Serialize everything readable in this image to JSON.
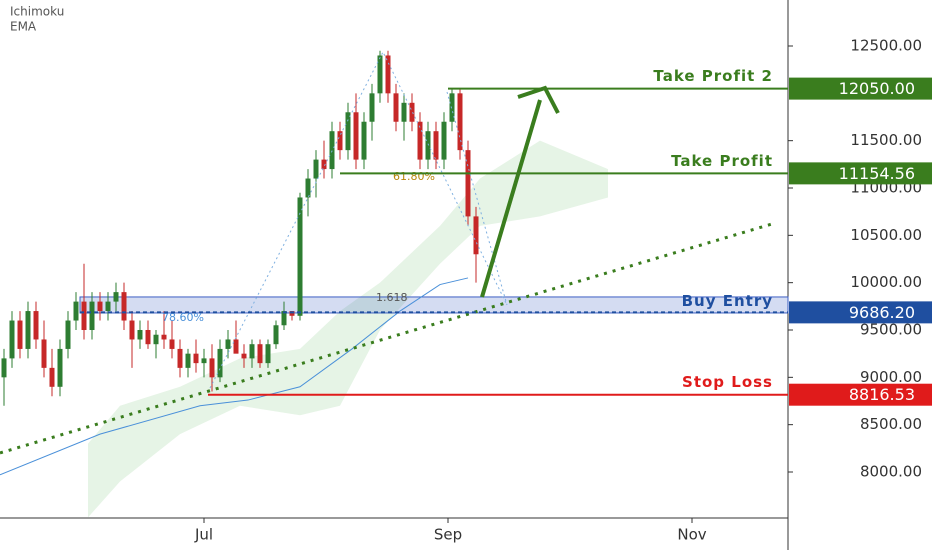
{
  "chart_data": {
    "type": "candlestick",
    "indicators": [
      "Ichimoku",
      "EMA"
    ],
    "xlim": [
      0,
      197
    ],
    "xticks": [
      {
        "value": 51,
        "label": "Jul"
      },
      {
        "value": 112,
        "label": "Sep"
      },
      {
        "value": 173,
        "label": "Nov"
      }
    ],
    "ylim": [
      7514,
      12986
    ],
    "yticks": [
      {
        "value": 8000,
        "label": "8000.00"
      },
      {
        "value": 8500,
        "label": "8500.00"
      },
      {
        "value": 9000,
        "label": "9000.00"
      },
      {
        "value": 9500,
        "label": "9500.00"
      },
      {
        "value": 10000,
        "label": "10000.00"
      },
      {
        "value": 10500,
        "label": "10500.00"
      },
      {
        "value": 11000,
        "label": "11000.00"
      },
      {
        "value": 11500,
        "label": "11500.00"
      },
      {
        "value": 12500,
        "label": "12500.00"
      }
    ],
    "up_color": "#2e7d32",
    "down_color": "#c62828",
    "candles": {
      "x": [
        1,
        3,
        5,
        7,
        9,
        11,
        13,
        15,
        17,
        19,
        21,
        23,
        25,
        27,
        29,
        31,
        33,
        35,
        37,
        39,
        41,
        43,
        45,
        47,
        49,
        51,
        53,
        55,
        57,
        59,
        61,
        63,
        65,
        67,
        69,
        71,
        73,
        75,
        77,
        79,
        81,
        83,
        85,
        87,
        89,
        91,
        93,
        95,
        97,
        99,
        101,
        103,
        105,
        107,
        109,
        111,
        113,
        115,
        117,
        119
      ],
      "open": [
        9000,
        9200,
        9600,
        9300,
        9700,
        9400,
        9100,
        8900,
        9300,
        9600,
        9800,
        9500,
        9800,
        9700,
        9800,
        9900,
        9600,
        9400,
        9500,
        9350,
        9450,
        9400,
        9300,
        9100,
        9250,
        9150,
        9200,
        9000,
        9300,
        9400,
        9250,
        9200,
        9350,
        9150,
        9350,
        9550,
        9700,
        9650,
        10900,
        11100,
        11300,
        11200,
        11600,
        11400,
        11800,
        11300,
        11700,
        12000,
        12400,
        12000,
        11700,
        11900,
        11700,
        11300,
        11600,
        11300,
        11700,
        12000,
        11400,
        10700
      ],
      "high": [
        9300,
        9700,
        9700,
        9800,
        9800,
        9600,
        9300,
        9400,
        9700,
        9900,
        10200,
        9900,
        9900,
        9900,
        10000,
        10000,
        9700,
        9600,
        9600,
        9500,
        9700,
        9600,
        9400,
        9300,
        9400,
        9300,
        9350,
        9400,
        9500,
        9600,
        9350,
        9400,
        9400,
        9400,
        9600,
        9800,
        9700,
        10950,
        11200,
        11400,
        11500,
        11700,
        11700,
        11900,
        12000,
        11800,
        12100,
        12450,
        12450,
        12100,
        12000,
        12000,
        11800,
        11700,
        11700,
        11800,
        12050,
        12050,
        11500,
        10800
      ],
      "low": [
        8700,
        9100,
        9200,
        9200,
        9300,
        9000,
        8800,
        8800,
        9200,
        9500,
        9400,
        9400,
        9600,
        9600,
        9700,
        9500,
        9100,
        9300,
        9300,
        9200,
        9300,
        9200,
        9000,
        9000,
        9050,
        9000,
        8850,
        8950,
        9200,
        9300,
        9100,
        9100,
        9100,
        9100,
        9300,
        9500,
        9600,
        9600,
        10700,
        10900,
        11100,
        11100,
        11300,
        11300,
        11200,
        11200,
        11500,
        11900,
        11900,
        11600,
        11500,
        11600,
        11200,
        11200,
        11200,
        11200,
        11600,
        11300,
        10600,
        10000
      ],
      "close": [
        9200,
        9600,
        9300,
        9700,
        9400,
        9100,
        8900,
        9300,
        9600,
        9800,
        9500,
        9800,
        9700,
        9800,
        9900,
        9600,
        9400,
        9500,
        9350,
        9450,
        9400,
        9300,
        9100,
        9250,
        9150,
        9200,
        9000,
        9300,
        9400,
        9250,
        9200,
        9350,
        9150,
        9350,
        9550,
        9700,
        9650,
        10900,
        11100,
        11300,
        11200,
        11600,
        11400,
        11800,
        11300,
        11700,
        12000,
        12400,
        12000,
        11700,
        11900,
        11700,
        11300,
        11600,
        11300,
        11700,
        12000,
        11400,
        10700,
        10300
      ]
    },
    "ema": {
      "color": "#4a90d9",
      "x": [
        0,
        25,
        50,
        62,
        75,
        88,
        100,
        110,
        117
      ],
      "values": [
        7970,
        8400,
        8700,
        8760,
        8900,
        9300,
        9700,
        9980,
        10050
      ]
    },
    "cloud": {
      "color": "#e6f4e6",
      "x": [
        22,
        30,
        45,
        60,
        75,
        85,
        95,
        110,
        120,
        135,
        152
      ],
      "upper": [
        8300,
        8700,
        8900,
        9200,
        9300,
        9700,
        10000,
        10600,
        11100,
        11500,
        11200
      ],
      "lower": [
        7520,
        7900,
        8400,
        8700,
        8600,
        8700,
        9500,
        10200,
        10600,
        10700,
        10900
      ]
    },
    "trendline": {
      "color": "#3a7d1e",
      "x": [
        0,
        193
      ],
      "values": [
        8201,
        10620
      ]
    },
    "buy_zone": {
      "color": "#3d5fc4",
      "x": [
        20,
        197
      ],
      "low": 9680,
      "high": 9849
    },
    "levels": [
      {
        "name": "Take Profit 2",
        "value": 12050,
        "label": "12050.00",
        "start": 112,
        "color": "#3a7d1e"
      },
      {
        "name": "Take Profit",
        "value": 11154.56,
        "label": "11154.56",
        "start": 85,
        "color": "#3a7d1e"
      },
      {
        "name": "Buy Entry",
        "value": 9686.2,
        "label": "9686.20",
        "start": 20,
        "color": "#1f4fa0"
      },
      {
        "name": "Stop Loss",
        "value": 8816.53,
        "label": "8816.53",
        "start": 52,
        "color": "#e01b1b"
      }
    ],
    "annotations": [
      "61.80%",
      "1.618",
      "78.60%"
    ]
  }
}
